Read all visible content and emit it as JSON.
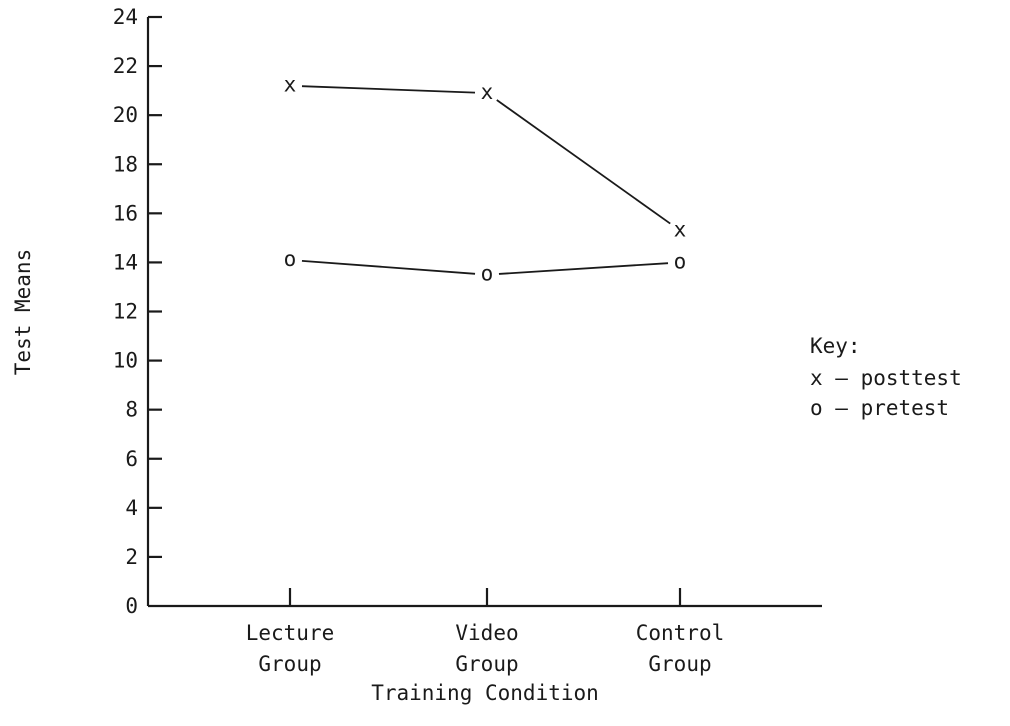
{
  "chart_data": {
    "type": "line",
    "title": "",
    "xlabel": "Training Condition",
    "ylabel": "Test Means",
    "categories": [
      [
        "Lecture",
        "Group"
      ],
      [
        "Video",
        "Group"
      ],
      [
        "Control",
        "Group"
      ]
    ],
    "yticks": [
      0,
      2,
      4,
      6,
      8,
      10,
      12,
      14,
      16,
      18,
      20,
      22,
      24
    ],
    "ylim": [
      0,
      24
    ],
    "grid": false,
    "legend_position": "right",
    "series": [
      {
        "name": "posttest",
        "marker": "x",
        "values": [
          21.2,
          20.9,
          15.3
        ]
      },
      {
        "name": "pretest",
        "marker": "o",
        "values": [
          14.1,
          13.5,
          14.0
        ]
      }
    ],
    "legend": {
      "title": "Key:",
      "entries": [
        "x — posttest",
        "o — pretest"
      ]
    }
  }
}
